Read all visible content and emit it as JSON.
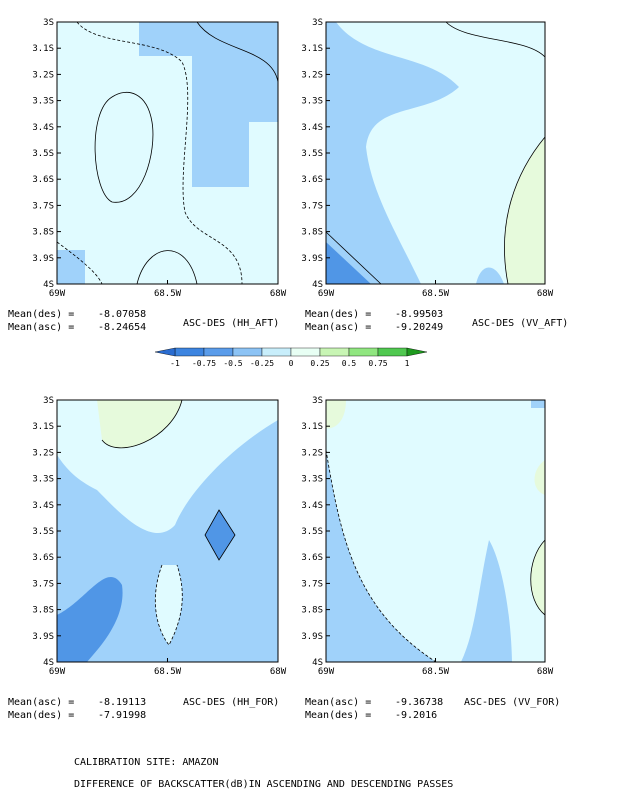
{
  "chart_data": [
    {
      "type": "contour",
      "title": "ASC-DES (HH_AFT)",
      "stats": [
        {
          "label": "Mean(des) =",
          "value": -8.07058
        },
        {
          "label": "Mean(asc) =",
          "value": -8.24654
        }
      ],
      "xlim": [
        -69,
        -68
      ],
      "ylim": [
        -4,
        -3
      ],
      "xticks": [
        {
          "value": -69,
          "label": "69W"
        },
        {
          "value": -68.5,
          "label": "68.5W"
        },
        {
          "value": -68,
          "label": "68W"
        }
      ],
      "yticks": [
        {
          "value": -3,
          "label": "3S"
        },
        {
          "value": -3.1,
          "label": "3.1S"
        },
        {
          "value": -3.2,
          "label": "3.2S"
        },
        {
          "value": -3.3,
          "label": "3.3S"
        },
        {
          "value": -3.4,
          "label": "3.4S"
        },
        {
          "value": -3.5,
          "label": "3.5S"
        },
        {
          "value": -3.6,
          "label": "3.6S"
        },
        {
          "value": -3.7,
          "label": "3.7S"
        },
        {
          "value": -3.8,
          "label": "3.8S"
        },
        {
          "value": -3.9,
          "label": "3.9S"
        },
        {
          "value": -4,
          "label": "4S"
        }
      ]
    },
    {
      "type": "contour",
      "title": "ASC-DES (VV_AFT)",
      "stats": [
        {
          "label": "Mean(des) =",
          "value": -8.99503
        },
        {
          "label": "Mean(asc) =",
          "value": -9.20249
        }
      ],
      "xlim": [
        -69,
        -68
      ],
      "ylim": [
        -4,
        -3
      ],
      "xticks": [
        {
          "value": -69,
          "label": "69W"
        },
        {
          "value": -68.5,
          "label": "68.5W"
        },
        {
          "value": -68,
          "label": "68W"
        }
      ],
      "yticks": [
        {
          "value": -3,
          "label": "3S"
        },
        {
          "value": -3.1,
          "label": "3.1S"
        },
        {
          "value": -3.2,
          "label": "3.2S"
        },
        {
          "value": -3.3,
          "label": "3.3S"
        },
        {
          "value": -3.4,
          "label": "3.4S"
        },
        {
          "value": -3.5,
          "label": "3.5S"
        },
        {
          "value": -3.6,
          "label": "3.6S"
        },
        {
          "value": -3.7,
          "label": "3.7S"
        },
        {
          "value": -3.8,
          "label": "3.8S"
        },
        {
          "value": -3.9,
          "label": "3.9S"
        },
        {
          "value": -4,
          "label": "4S"
        }
      ]
    },
    {
      "type": "contour",
      "title": "ASC-DES (HH_FOR)",
      "stats": [
        {
          "label": "Mean(asc) =",
          "value": -8.19113
        },
        {
          "label": "Mean(des) =",
          "value": -7.91998
        }
      ],
      "xlim": [
        -69,
        -68
      ],
      "ylim": [
        -4,
        -3
      ],
      "xticks": [
        {
          "value": -69,
          "label": "69W"
        },
        {
          "value": -68.5,
          "label": "68.5W"
        },
        {
          "value": -68,
          "label": "68W"
        }
      ],
      "yticks": [
        {
          "value": -3,
          "label": "3S"
        },
        {
          "value": -3.1,
          "label": "3.1S"
        },
        {
          "value": -3.2,
          "label": "3.2S"
        },
        {
          "value": -3.3,
          "label": "3.3S"
        },
        {
          "value": -3.4,
          "label": "3.4S"
        },
        {
          "value": -3.5,
          "label": "3.5S"
        },
        {
          "value": -3.6,
          "label": "3.6S"
        },
        {
          "value": -3.7,
          "label": "3.7S"
        },
        {
          "value": -3.8,
          "label": "3.8S"
        },
        {
          "value": -3.9,
          "label": "3.9S"
        },
        {
          "value": -4,
          "label": "4S"
        }
      ]
    },
    {
      "type": "contour",
      "title": "ASC-DES (VV_FOR)",
      "stats": [
        {
          "label": "Mean(asc) =",
          "value": -9.36738
        },
        {
          "label": "Mean(des) =",
          "value": -9.2016
        }
      ],
      "xlim": [
        -69,
        -68
      ],
      "ylim": [
        -4,
        -3
      ],
      "xticks": [
        {
          "value": -69,
          "label": "69W"
        },
        {
          "value": -68.5,
          "label": "68.5W"
        },
        {
          "value": -68,
          "label": "68W"
        }
      ],
      "yticks": [
        {
          "value": -3,
          "label": "3S"
        },
        {
          "value": -3.1,
          "label": "3.1S"
        },
        {
          "value": -3.2,
          "label": "3.2S"
        },
        {
          "value": -3.3,
          "label": "3.3S"
        },
        {
          "value": -3.4,
          "label": "3.4S"
        },
        {
          "value": -3.5,
          "label": "3.5S"
        },
        {
          "value": -3.6,
          "label": "3.6S"
        },
        {
          "value": -3.7,
          "label": "3.7S"
        },
        {
          "value": -3.8,
          "label": "3.8S"
        },
        {
          "value": -3.9,
          "label": "3.9S"
        },
        {
          "value": -4,
          "label": "4S"
        }
      ]
    }
  ],
  "colorbar": {
    "levels": [
      -1,
      -0.75,
      -0.5,
      -0.25,
      0,
      0.25,
      0.5,
      0.75,
      1
    ],
    "colors": [
      "#2a6cd0",
      "#3c84e0",
      "#5a9cea",
      "#8cc3f5",
      "#c8eefb",
      "#e8fff4",
      "#c8f5b4",
      "#90e680",
      "#50c850",
      "#1e9a1e"
    ]
  },
  "footer": {
    "site": "CALIBRATION SITE: AMAZON",
    "caption": "DIFFERENCE OF BACKSCATTER(dB)IN ASCENDING AND DESCENDING PASSES"
  }
}
